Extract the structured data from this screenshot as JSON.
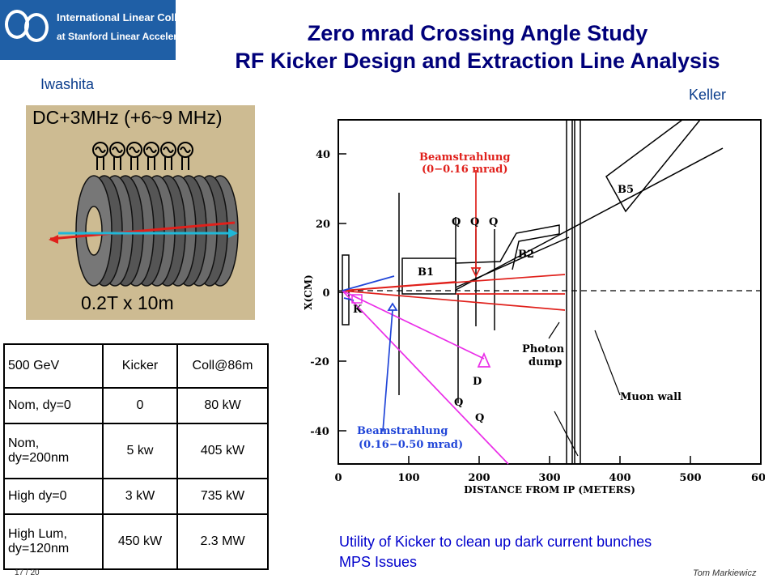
{
  "logo": {
    "line1": "International Linear Collider",
    "line2": "at Stanford Linear Accelerator Center"
  },
  "title": {
    "line1": "Zero mrad Crossing Angle Study",
    "line2": "RF Kicker Design and Extraction Line Analysis"
  },
  "left_author": "Iwashita",
  "right_author": "Keller",
  "magnet_image": {
    "caption_top": "DC+3MHz (+6~9 MHz)",
    "caption_bottom": "0.2T x 10m"
  },
  "plot": {
    "ylabel": "X(CM)",
    "xlabel": "DISTANCE FROM IP (METERS)",
    "x_ticks": [
      "0",
      "100",
      "200",
      "300",
      "400",
      "500",
      "60"
    ],
    "y_ticks": [
      "40",
      "20",
      "0",
      "-20",
      "-40"
    ],
    "labels": {
      "beam1_line1": "Beamstrahlung",
      "beam1_line2": "(0−0.16 mrad)",
      "beam2_line1": "Beamstrahlung",
      "beam2_line2": "(0.16−0.50 mrad)",
      "b1": "B1",
      "b2": "B2",
      "b5": "B5",
      "q1": "Q",
      "q2": "Q",
      "q3": "Q",
      "q4": "Q",
      "q5": "Q",
      "k": "K",
      "d": "D",
      "photon1": "Photon",
      "photon2": "dump",
      "muon": "Muon wall"
    }
  },
  "table": {
    "headers": [
      "500 GeV",
      "Kicker",
      "Coll@86m"
    ],
    "rows": [
      [
        "Nom, dy=0",
        "0",
        "80 kW"
      ],
      [
        "Nom, dy=200nm",
        "5 kw",
        "405 kW"
      ],
      [
        "High dy=0",
        "3 kW",
        "735 kW"
      ],
      [
        "High Lum, dy=120nm",
        "450 kW",
        "2.3 MW"
      ]
    ]
  },
  "footer": {
    "line1": "Utility of Kicker to clean up dark current bunches",
    "line2": "MPS Issues",
    "page": "17 / 20",
    "author": "Tom Markiewicz"
  }
}
